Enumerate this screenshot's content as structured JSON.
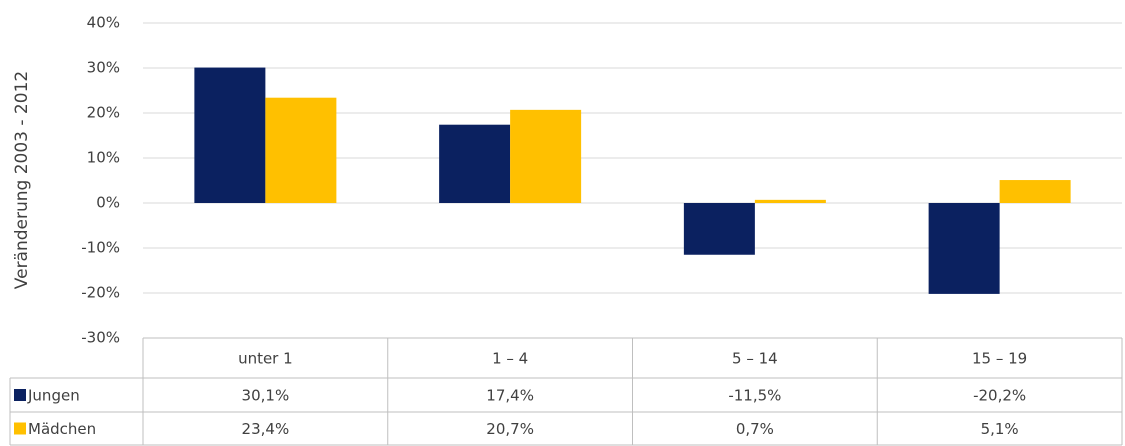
{
  "chart_data": {
    "type": "bar",
    "y_label": "Veränderung 2003 - 2012",
    "categories": [
      "unter 1",
      "1 – 4",
      "5 – 14",
      "15 – 19"
    ],
    "series": [
      {
        "name": "Jungen",
        "color": "#0b2160",
        "values": [
          30.1,
          17.4,
          -11.5,
          -20.2
        ],
        "value_labels": [
          "30,1%",
          "17,4%",
          "-11,5%",
          "-20,2%"
        ]
      },
      {
        "name": "Mädchen",
        "color": "#ffc000",
        "values": [
          23.4,
          20.7,
          0.7,
          5.1
        ],
        "value_labels": [
          "23,4%",
          "20,7%",
          "0,7%",
          "5,1%"
        ]
      }
    ],
    "ylim": [
      -30,
      40
    ],
    "yticks": [
      {
        "value": -30,
        "label": "-30%"
      },
      {
        "value": -20,
        "label": "-20%"
      },
      {
        "value": -10,
        "label": "-10%"
      },
      {
        "value": 0,
        "label": "0%"
      },
      {
        "value": 10,
        "label": "10%"
      },
      {
        "value": 20,
        "label": "20%"
      },
      {
        "value": 30,
        "label": "30%"
      },
      {
        "value": 40,
        "label": "40%"
      }
    ],
    "grid": true
  }
}
